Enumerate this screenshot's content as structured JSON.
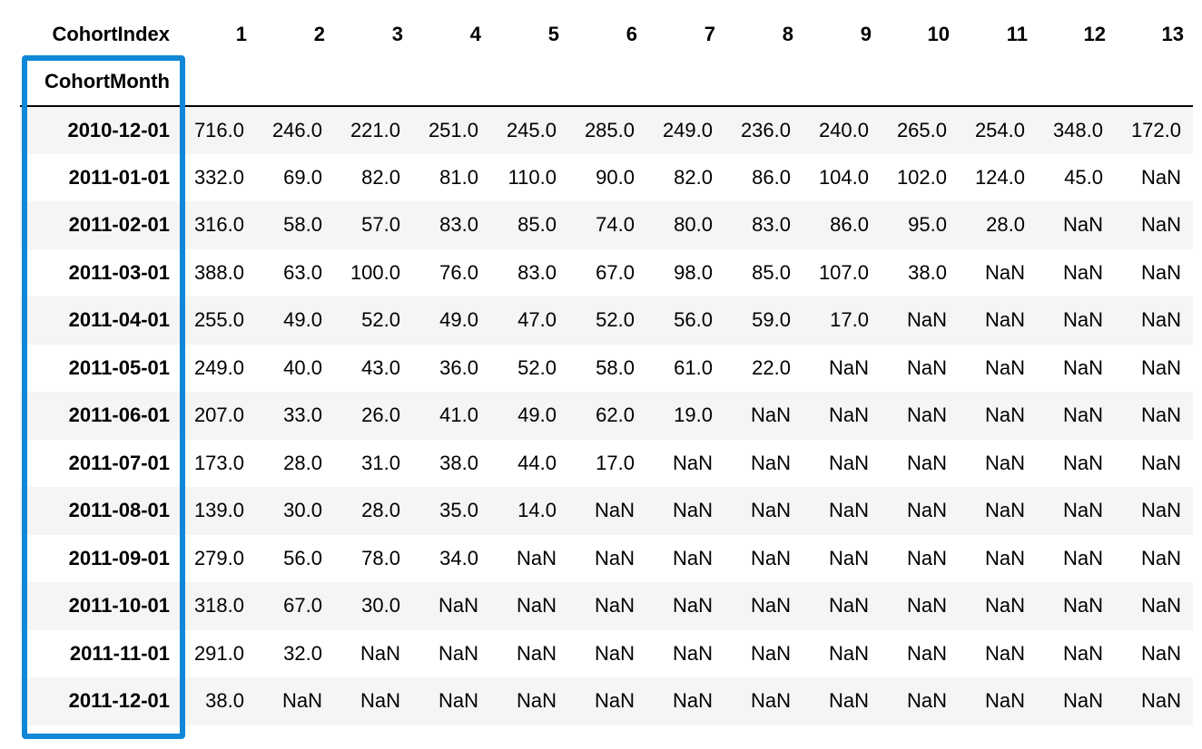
{
  "columns_name": "CohortIndex",
  "index_name": "CohortMonth",
  "columns": [
    "1",
    "2",
    "3",
    "4",
    "5",
    "6",
    "7",
    "8",
    "9",
    "10",
    "11",
    "12",
    "13"
  ],
  "highlight_color": "#1187d8",
  "rows": [
    {
      "month": "2010-12-01",
      "values": [
        "716.0",
        "246.0",
        "221.0",
        "251.0",
        "245.0",
        "285.0",
        "249.0",
        "236.0",
        "240.0",
        "265.0",
        "254.0",
        "348.0",
        "172.0"
      ]
    },
    {
      "month": "2011-01-01",
      "values": [
        "332.0",
        "69.0",
        "82.0",
        "81.0",
        "110.0",
        "90.0",
        "82.0",
        "86.0",
        "104.0",
        "102.0",
        "124.0",
        "45.0",
        "NaN"
      ]
    },
    {
      "month": "2011-02-01",
      "values": [
        "316.0",
        "58.0",
        "57.0",
        "83.0",
        "85.0",
        "74.0",
        "80.0",
        "83.0",
        "86.0",
        "95.0",
        "28.0",
        "NaN",
        "NaN"
      ]
    },
    {
      "month": "2011-03-01",
      "values": [
        "388.0",
        "63.0",
        "100.0",
        "76.0",
        "83.0",
        "67.0",
        "98.0",
        "85.0",
        "107.0",
        "38.0",
        "NaN",
        "NaN",
        "NaN"
      ]
    },
    {
      "month": "2011-04-01",
      "values": [
        "255.0",
        "49.0",
        "52.0",
        "49.0",
        "47.0",
        "52.0",
        "56.0",
        "59.0",
        "17.0",
        "NaN",
        "NaN",
        "NaN",
        "NaN"
      ]
    },
    {
      "month": "2011-05-01",
      "values": [
        "249.0",
        "40.0",
        "43.0",
        "36.0",
        "52.0",
        "58.0",
        "61.0",
        "22.0",
        "NaN",
        "NaN",
        "NaN",
        "NaN",
        "NaN"
      ]
    },
    {
      "month": "2011-06-01",
      "values": [
        "207.0",
        "33.0",
        "26.0",
        "41.0",
        "49.0",
        "62.0",
        "19.0",
        "NaN",
        "NaN",
        "NaN",
        "NaN",
        "NaN",
        "NaN"
      ]
    },
    {
      "month": "2011-07-01",
      "values": [
        "173.0",
        "28.0",
        "31.0",
        "38.0",
        "44.0",
        "17.0",
        "NaN",
        "NaN",
        "NaN",
        "NaN",
        "NaN",
        "NaN",
        "NaN"
      ]
    },
    {
      "month": "2011-08-01",
      "values": [
        "139.0",
        "30.0",
        "28.0",
        "35.0",
        "14.0",
        "NaN",
        "NaN",
        "NaN",
        "NaN",
        "NaN",
        "NaN",
        "NaN",
        "NaN"
      ]
    },
    {
      "month": "2011-09-01",
      "values": [
        "279.0",
        "56.0",
        "78.0",
        "34.0",
        "NaN",
        "NaN",
        "NaN",
        "NaN",
        "NaN",
        "NaN",
        "NaN",
        "NaN",
        "NaN"
      ]
    },
    {
      "month": "2011-10-01",
      "values": [
        "318.0",
        "67.0",
        "30.0",
        "NaN",
        "NaN",
        "NaN",
        "NaN",
        "NaN",
        "NaN",
        "NaN",
        "NaN",
        "NaN",
        "NaN"
      ]
    },
    {
      "month": "2011-11-01",
      "values": [
        "291.0",
        "32.0",
        "NaN",
        "NaN",
        "NaN",
        "NaN",
        "NaN",
        "NaN",
        "NaN",
        "NaN",
        "NaN",
        "NaN",
        "NaN"
      ]
    },
    {
      "month": "2011-12-01",
      "values": [
        "38.0",
        "NaN",
        "NaN",
        "NaN",
        "NaN",
        "NaN",
        "NaN",
        "NaN",
        "NaN",
        "NaN",
        "NaN",
        "NaN",
        "NaN"
      ]
    }
  ]
}
